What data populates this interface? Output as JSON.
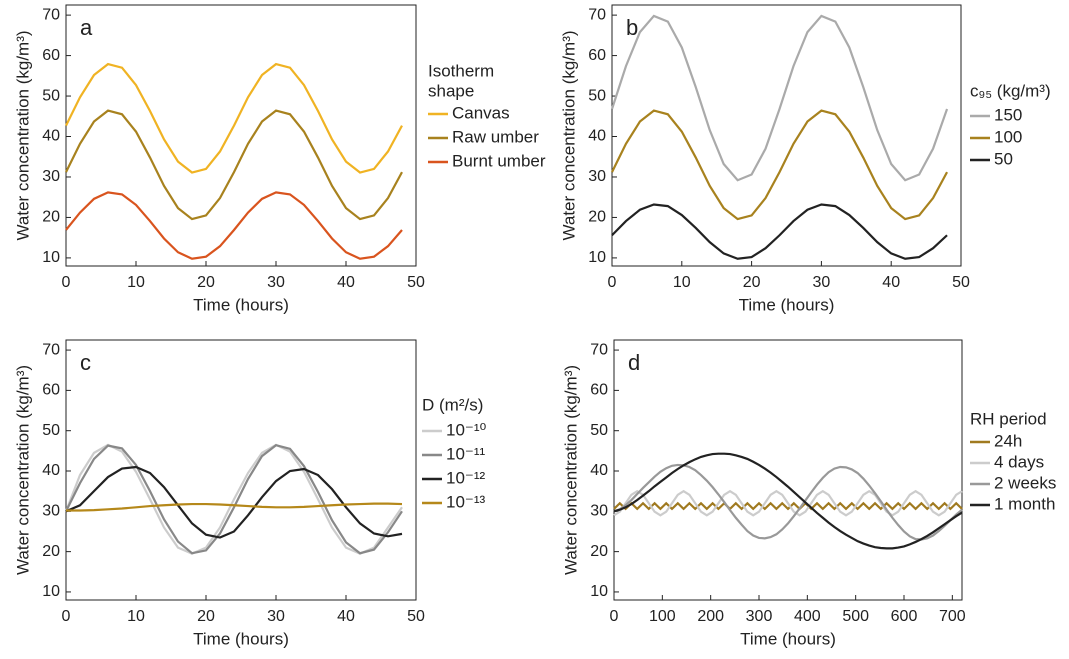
{
  "chart_data": [
    {
      "type": "line",
      "label": "a",
      "xlabel": "Time (hours)",
      "ylabel": "Water concentration (kg/m³)",
      "legend_title": [
        "Isotherm",
        "shape"
      ],
      "xlim": [
        0,
        50
      ],
      "ylim": [
        8,
        72.5
      ],
      "xticks": [
        0,
        10,
        20,
        30,
        40,
        50
      ],
      "yticks": [
        10,
        20,
        30,
        40,
        50,
        60,
        70
      ],
      "x": [
        0,
        2,
        4,
        6,
        8,
        10,
        12,
        14,
        16,
        18,
        20,
        22,
        24,
        26,
        28,
        30,
        32,
        34,
        36,
        38,
        40,
        42,
        44,
        46,
        48
      ],
      "series": [
        {
          "name": "Canvas",
          "color": "#f0b323",
          "values": [
            42.7,
            49.7,
            55.2,
            57.9,
            57.0,
            52.7,
            46.3,
            39.3,
            33.8,
            31.1,
            32.0,
            36.3,
            42.7,
            49.7,
            55.2,
            57.9,
            57.0,
            52.7,
            46.3,
            39.3,
            33.8,
            31.1,
            32.0,
            36.3,
            42.7
          ]
        },
        {
          "name": "Raw umber",
          "color": "#a8821e",
          "values": [
            31.2,
            38.2,
            43.7,
            46.4,
            45.5,
            41.2,
            34.8,
            27.8,
            22.3,
            19.6,
            20.5,
            24.8,
            31.2,
            38.2,
            43.7,
            46.4,
            45.5,
            41.2,
            34.8,
            27.8,
            22.3,
            19.6,
            20.5,
            24.8,
            31.2
          ]
        },
        {
          "name": "Burnt umber",
          "color": "#d9541e",
          "values": [
            16.9,
            21.2,
            24.6,
            26.2,
            25.7,
            23.1,
            19.1,
            14.8,
            11.4,
            9.8,
            10.3,
            12.9,
            16.9,
            21.2,
            24.6,
            26.2,
            25.7,
            23.1,
            19.1,
            14.8,
            11.4,
            9.8,
            10.3,
            12.9,
            16.9
          ]
        }
      ]
    },
    {
      "type": "line",
      "label": "b",
      "xlabel": "Time (hours)",
      "ylabel": "Water concentration (kg/m³)",
      "legend_title": "c₉₅ (kg/m³)",
      "xlim": [
        0,
        50
      ],
      "ylim": [
        8,
        72.5
      ],
      "xticks": [
        0,
        10,
        20,
        30,
        40,
        50
      ],
      "yticks": [
        10,
        20,
        30,
        40,
        50,
        60,
        70
      ],
      "x": [
        0,
        2,
        4,
        6,
        8,
        10,
        12,
        14,
        16,
        18,
        20,
        22,
        24,
        26,
        28,
        30,
        32,
        34,
        36,
        38,
        40,
        42,
        44,
        46,
        48
      ],
      "series": [
        {
          "name": "150",
          "color": "#aaaaaa",
          "values": [
            46.8,
            57.4,
            65.8,
            69.8,
            68.4,
            62.0,
            52.2,
            41.6,
            33.2,
            29.2,
            30.6,
            37.0,
            46.8,
            57.4,
            65.8,
            69.8,
            68.4,
            62.0,
            52.2,
            41.6,
            33.2,
            29.2,
            30.6,
            37.0,
            46.8
          ]
        },
        {
          "name": "100",
          "color": "#a8821e",
          "values": [
            31.2,
            38.2,
            43.7,
            46.4,
            45.5,
            41.2,
            34.8,
            27.8,
            22.3,
            19.6,
            20.5,
            24.8,
            31.2,
            38.2,
            43.7,
            46.4,
            45.5,
            41.2,
            34.8,
            27.8,
            22.3,
            19.6,
            20.5,
            24.8,
            31.2
          ]
        },
        {
          "name": "50",
          "color": "#222222",
          "values": [
            15.6,
            19.1,
            21.9,
            23.2,
            22.8,
            20.6,
            17.4,
            13.9,
            11.1,
            9.8,
            10.2,
            12.4,
            15.6,
            19.1,
            21.9,
            23.2,
            22.8,
            20.6,
            17.4,
            13.9,
            11.1,
            9.8,
            10.2,
            12.4,
            15.6
          ]
        }
      ]
    },
    {
      "type": "line",
      "label": "c",
      "xlabel": "Time (hours)",
      "ylabel": "Water concentration (kg/m³)",
      "legend_title": "D (m²/s)",
      "xlim": [
        0,
        50
      ],
      "ylim": [
        8,
        72.5
      ],
      "xticks": [
        0,
        10,
        20,
        30,
        40,
        50
      ],
      "yticks": [
        10,
        20,
        30,
        40,
        50,
        60,
        70
      ],
      "x": [
        0,
        2,
        4,
        6,
        8,
        10,
        12,
        14,
        16,
        18,
        20,
        22,
        24,
        26,
        28,
        30,
        32,
        34,
        36,
        38,
        40,
        42,
        44,
        46,
        48
      ],
      "series": [
        {
          "name": "10⁻¹⁰",
          "color": "#cccccc",
          "values": [
            30,
            39,
            44.5,
            46.5,
            44.8,
            39.8,
            33,
            26,
            21,
            19.5,
            21,
            26,
            33,
            39.5,
            44.5,
            46.5,
            44.8,
            39.8,
            33,
            26,
            21,
            19.5,
            21,
            26,
            31
          ]
        },
        {
          "name": "10⁻¹¹",
          "color": "#888888",
          "values": [
            30,
            37,
            43,
            46.3,
            45.6,
            41.5,
            35,
            28,
            22.5,
            19.6,
            20.3,
            24.5,
            31,
            38,
            43.7,
            46.4,
            45.5,
            41.2,
            34.8,
            27.8,
            22.3,
            19.6,
            20.5,
            24.8,
            30
          ]
        },
        {
          "name": "10⁻¹²",
          "color": "#222222",
          "values": [
            30,
            31.5,
            35,
            38.5,
            40.6,
            41,
            39.5,
            36,
            31.5,
            27,
            24.2,
            23.5,
            25,
            29,
            33.5,
            37.5,
            40,
            40.5,
            39,
            35.5,
            31,
            27,
            24.5,
            23.8,
            24.4
          ]
        },
        {
          "name": "10⁻¹³",
          "color": "#b5881a",
          "values": [
            30.2,
            30.2,
            30.3,
            30.5,
            30.7,
            31.0,
            31.3,
            31.5,
            31.7,
            31.8,
            31.8,
            31.7,
            31.5,
            31.3,
            31.1,
            31.0,
            31.0,
            31.1,
            31.3,
            31.5,
            31.7,
            31.8,
            31.9,
            31.9,
            31.8
          ]
        }
      ]
    },
    {
      "type": "line",
      "label": "d",
      "xlabel": "Time (hours)",
      "ylabel": "Water concentration (kg/m³)",
      "legend_title": "RH period",
      "xlim": [
        0,
        720
      ],
      "ylim": [
        8,
        72.5
      ],
      "xticks": [
        0,
        100,
        200,
        300,
        400,
        500,
        600,
        700
      ],
      "yticks": [
        10,
        20,
        30,
        40,
        50,
        60,
        70
      ],
      "x": [
        0,
        12,
        24,
        36,
        48,
        60,
        72,
        84,
        96,
        108,
        120,
        132,
        144,
        156,
        168,
        180,
        192,
        204,
        216,
        228,
        240,
        252,
        264,
        276,
        288,
        300,
        312,
        324,
        336,
        348,
        360,
        372,
        384,
        396,
        408,
        420,
        432,
        444,
        456,
        468,
        480,
        492,
        504,
        516,
        528,
        540,
        552,
        564,
        576,
        588,
        600,
        612,
        624,
        636,
        648,
        660,
        672,
        684,
        696,
        708,
        720
      ],
      "series": [
        {
          "name": "24h",
          "color": "#a07a20",
          "values": [
            30.6,
            32.0,
            30.6,
            32.0,
            30.6,
            32.0,
            30.6,
            32.0,
            30.6,
            32.0,
            30.6,
            32.0,
            30.6,
            32.0,
            30.6,
            32.0,
            30.6,
            32.0,
            30.6,
            32.0,
            30.6,
            32.0,
            30.6,
            32.0,
            30.6,
            32.0,
            30.6,
            32.0,
            30.6,
            32.0,
            30.6,
            32.0,
            30.6,
            32.0,
            30.6,
            32.0,
            30.6,
            32.0,
            30.6,
            32.0,
            30.6,
            32.0,
            30.6,
            32.0,
            30.6,
            32.0,
            30.6,
            32.0,
            30.6,
            32.0,
            30.6,
            32.0,
            30.6,
            32.0,
            30.6,
            32.0,
            30.6,
            32.0,
            30.6,
            32.0,
            30.6
          ]
        },
        {
          "name": "4 days",
          "color": "#cccccc",
          "values": [
            29.0,
            29.9,
            32.0,
            34.1,
            35.0,
            34.1,
            32.0,
            29.9,
            29.0,
            29.9,
            32.0,
            34.1,
            35.0,
            34.1,
            32.0,
            29.9,
            29.0,
            29.9,
            32.0,
            34.1,
            35.0,
            34.1,
            32.0,
            29.9,
            29.0,
            29.9,
            32.0,
            34.1,
            35.0,
            34.1,
            32.0,
            29.9,
            29.0,
            29.9,
            32.0,
            34.1,
            35.0,
            34.1,
            32.0,
            29.9,
            29.0,
            29.9,
            32.0,
            34.1,
            35.0,
            34.1,
            32.0,
            29.9,
            29.0,
            29.9,
            32.0,
            34.1,
            35.0,
            34.1,
            32.0,
            29.9,
            29.0,
            29.9,
            32.0,
            34.1,
            35.0
          ]
        },
        {
          "name": "2 weeks",
          "color": "#999999",
          "values": [
            30,
            30.5,
            31.5,
            32.8,
            34.3,
            35.8,
            37.2,
            38.6,
            39.8,
            40.7,
            41.3,
            41.5,
            41.4,
            41.0,
            40.2,
            39.0,
            37.6,
            36.0,
            34.2,
            32.3,
            30.3,
            28.4,
            26.7,
            25.1,
            24.0,
            23.4,
            23.3,
            23.6,
            24.3,
            25.5,
            27.0,
            28.8,
            30.7,
            32.7,
            34.7,
            36.6,
            38.3,
            39.7,
            40.6,
            41.0,
            40.9,
            40.4,
            39.5,
            38.1,
            36.4,
            34.5,
            32.5,
            30.4,
            28.4,
            26.6,
            25.0,
            23.8,
            23.1,
            23.0,
            23.3,
            24.0,
            25.1,
            26.4,
            27.8,
            29.2,
            30.4
          ]
        },
        {
          "name": "1 month",
          "color": "#222222",
          "values": [
            30,
            30.4,
            31.0,
            31.8,
            32.8,
            33.9,
            35.0,
            36.2,
            37.3,
            38.4,
            39.5,
            40.5,
            41.4,
            42.2,
            42.9,
            43.5,
            43.9,
            44.2,
            44.3,
            44.3,
            44.2,
            43.9,
            43.5,
            43.0,
            42.3,
            41.5,
            40.6,
            39.6,
            38.5,
            37.3,
            36.1,
            34.8,
            33.5,
            32.2,
            30.9,
            29.6,
            28.4,
            27.2,
            26.1,
            25.1,
            24.2,
            23.4,
            22.6,
            22.0,
            21.5,
            21.1,
            20.9,
            20.8,
            20.8,
            21.0,
            21.3,
            21.8,
            22.4,
            23.1,
            23.9,
            24.8,
            25.8,
            26.8,
            27.8,
            28.8,
            29.7
          ]
        }
      ]
    }
  ]
}
